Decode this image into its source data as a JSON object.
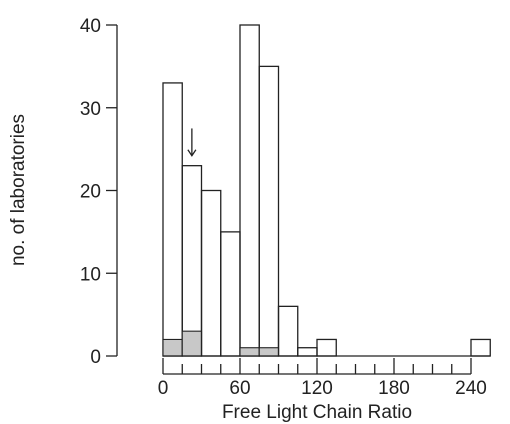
{
  "chart_data": {
    "type": "bar",
    "title": "",
    "xlabel": "Free Light Chain Ratio",
    "ylabel": "no. of laboratories",
    "xlim": [
      0,
      240
    ],
    "ylim": [
      0,
      40
    ],
    "x_ticks": [
      0,
      60,
      120,
      180,
      240
    ],
    "y_ticks": [
      0,
      10,
      20,
      30,
      40
    ],
    "bin_width": 15,
    "bins": [
      {
        "x0": 0,
        "x1": 15,
        "value": 33,
        "shaded": 2
      },
      {
        "x0": 15,
        "x1": 30,
        "value": 23,
        "shaded": 3
      },
      {
        "x0": 30,
        "x1": 45,
        "value": 20,
        "shaded": 0
      },
      {
        "x0": 45,
        "x1": 60,
        "value": 15,
        "shaded": 0
      },
      {
        "x0": 60,
        "x1": 75,
        "value": 40,
        "shaded": 1
      },
      {
        "x0": 75,
        "x1": 90,
        "value": 35,
        "shaded": 1
      },
      {
        "x0": 90,
        "x1": 105,
        "value": 6,
        "shaded": 0
      },
      {
        "x0": 105,
        "x1": 120,
        "value": 1,
        "shaded": 0
      },
      {
        "x0": 120,
        "x1": 135,
        "value": 2,
        "shaded": 0
      },
      {
        "x0": 135,
        "x1": 150,
        "value": 0,
        "shaded": 0
      },
      {
        "x0": 150,
        "x1": 165,
        "value": 0,
        "shaded": 0
      },
      {
        "x0": 165,
        "x1": 180,
        "value": 0,
        "shaded": 0
      },
      {
        "x0": 180,
        "x1": 195,
        "value": 0,
        "shaded": 0
      },
      {
        "x0": 240,
        "x1": 255,
        "value": 2,
        "shaded": 0
      }
    ],
    "marker_arrow_x": 22.5,
    "colors": {
      "shaded": "#c8c8c8",
      "bar_fill": "#ffffff",
      "axis": "#222222"
    },
    "grid": false,
    "legend": "none"
  }
}
